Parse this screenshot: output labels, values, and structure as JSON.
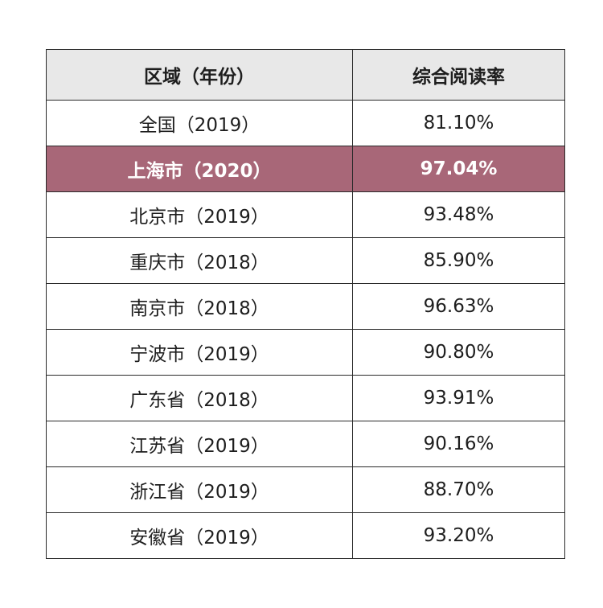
{
  "table": {
    "headers": [
      "区域（年份）",
      "综合阅读率"
    ],
    "highlight_color": "#a86778",
    "rows": [
      {
        "region": "全国（2019）",
        "rate": "81.10%",
        "highlight": false
      },
      {
        "region": "上海市（2020）",
        "rate": "97.04%",
        "highlight": true
      },
      {
        "region": "北京市（2019）",
        "rate": "93.48%",
        "highlight": false
      },
      {
        "region": "重庆市（2018）",
        "rate": "85.90%",
        "highlight": false
      },
      {
        "region": "南京市（2018）",
        "rate": "96.63%",
        "highlight": false
      },
      {
        "region": "宁波市（2019）",
        "rate": "90.80%",
        "highlight": false
      },
      {
        "region": "广东省（2018）",
        "rate": "93.91%",
        "highlight": false
      },
      {
        "region": "江苏省（2019）",
        "rate": "90.16%",
        "highlight": false
      },
      {
        "region": "浙江省（2019）",
        "rate": "88.70%",
        "highlight": false
      },
      {
        "region": "安徽省（2019）",
        "rate": "93.20%",
        "highlight": false
      }
    ]
  }
}
